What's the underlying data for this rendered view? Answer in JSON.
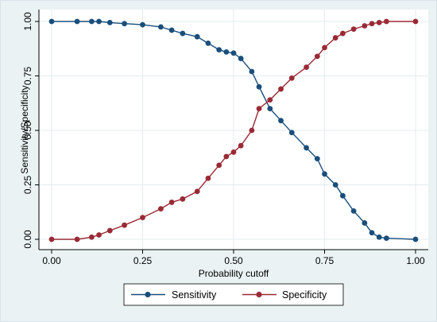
{
  "chart_data": {
    "type": "line",
    "title": "",
    "xlabel": "Probability cutoff",
    "ylabel": "Sensitivity/Specificity",
    "xlim": [
      0,
      1
    ],
    "ylim": [
      0,
      1
    ],
    "x_ticks": [
      "0.00",
      "0.25",
      "0.50",
      "0.75",
      "1.00"
    ],
    "y_ticks": [
      "0.00",
      "0.25",
      "0.50",
      "0.75",
      "1.00"
    ],
    "grid": true,
    "legend_position": "bottom",
    "series": [
      {
        "name": "Sensitivity",
        "color": "#1a4e7b",
        "marker": "circle",
        "x": [
          0.0,
          0.07,
          0.11,
          0.13,
          0.16,
          0.2,
          0.25,
          0.3,
          0.33,
          0.36,
          0.4,
          0.43,
          0.46,
          0.48,
          0.5,
          0.52,
          0.55,
          0.57,
          0.6,
          0.63,
          0.66,
          0.7,
          0.73,
          0.75,
          0.78,
          0.8,
          0.83,
          0.86,
          0.88,
          0.9,
          0.92,
          1.0
        ],
        "y": [
          1.0,
          1.0,
          1.0,
          1.0,
          0.995,
          0.99,
          0.985,
          0.975,
          0.96,
          0.945,
          0.93,
          0.9,
          0.87,
          0.86,
          0.855,
          0.83,
          0.77,
          0.7,
          0.6,
          0.545,
          0.49,
          0.42,
          0.37,
          0.3,
          0.25,
          0.2,
          0.13,
          0.075,
          0.03,
          0.01,
          0.005,
          0.0
        ]
      },
      {
        "name": "Specificity",
        "color": "#9a2a35",
        "marker": "circle",
        "x": [
          0.0,
          0.07,
          0.11,
          0.13,
          0.16,
          0.2,
          0.25,
          0.3,
          0.33,
          0.36,
          0.4,
          0.43,
          0.46,
          0.48,
          0.5,
          0.52,
          0.55,
          0.57,
          0.6,
          0.63,
          0.66,
          0.7,
          0.73,
          0.75,
          0.78,
          0.8,
          0.83,
          0.86,
          0.88,
          0.9,
          0.92,
          1.0
        ],
        "y": [
          0.0,
          0.0,
          0.01,
          0.02,
          0.04,
          0.065,
          0.1,
          0.14,
          0.17,
          0.185,
          0.22,
          0.28,
          0.34,
          0.38,
          0.4,
          0.43,
          0.5,
          0.6,
          0.64,
          0.69,
          0.74,
          0.79,
          0.84,
          0.88,
          0.925,
          0.945,
          0.965,
          0.98,
          0.99,
          0.995,
          1.0,
          1.0
        ]
      }
    ]
  }
}
